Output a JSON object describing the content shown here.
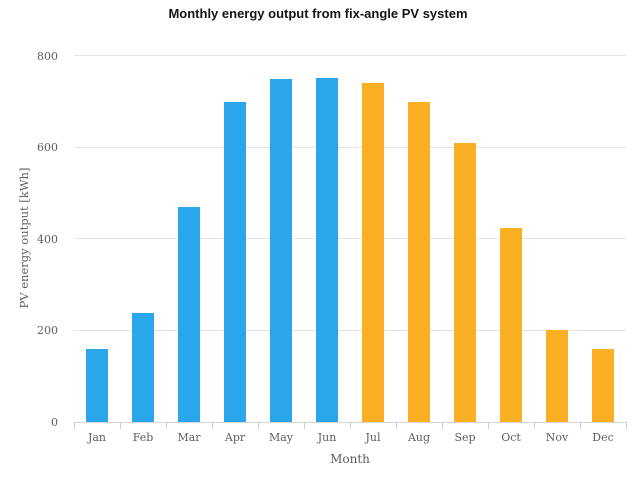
{
  "chart_data": {
    "type": "bar",
    "title": "Monthly energy output from fix-angle PV system",
    "xlabel": "Month",
    "ylabel": "PV energy output [kWh]",
    "categories": [
      "Jan",
      "Feb",
      "Mar",
      "Apr",
      "May",
      "Jun",
      "Jul",
      "Aug",
      "Sep",
      "Oct",
      "Nov",
      "Dec"
    ],
    "values": [
      160,
      238,
      470,
      700,
      750,
      753,
      740,
      700,
      610,
      425,
      202,
      160
    ],
    "bar_colors": [
      "#2aa7ea",
      "#2aa7ea",
      "#2aa7ea",
      "#2aa7ea",
      "#2aa7ea",
      "#2aa7ea",
      "#fbb023",
      "#fbb023",
      "#fbb023",
      "#fbb023",
      "#fbb023",
      "#fbb023"
    ],
    "palette": {
      "blue": "#2aa7ea",
      "orange": "#fbb023"
    },
    "ylim": [
      0,
      800
    ],
    "yticks": [
      0,
      200,
      400,
      600,
      800
    ],
    "grid": "horizontal",
    "grid_color": "#e4e4e4",
    "axis_text_color": "#5d5d5d",
    "legend": "none"
  }
}
